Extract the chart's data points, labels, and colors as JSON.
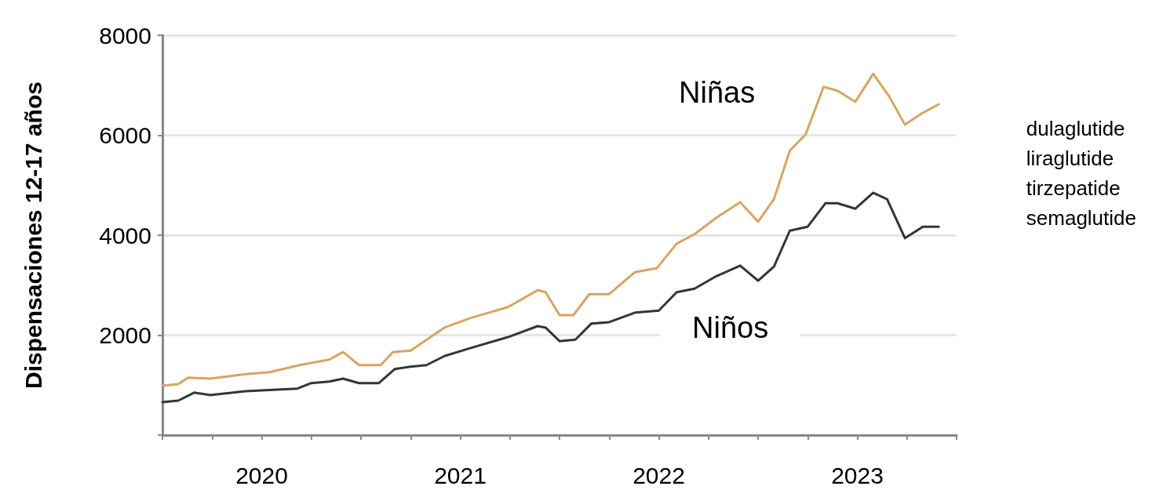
{
  "chart_data": {
    "type": "line",
    "ylabel": "Dispensaciones 12-17 años",
    "xlim": [
      2020,
      2024
    ],
    "xticks": [
      {
        "value": 2020,
        "label": null
      },
      {
        "value": 2020.25,
        "label": null
      },
      {
        "value": 2020.5,
        "label": "2020"
      },
      {
        "value": 2020.75,
        "label": null
      },
      {
        "value": 2021,
        "label": null
      },
      {
        "value": 2021.25,
        "label": null
      },
      {
        "value": 2021.5,
        "label": "2021"
      },
      {
        "value": 2021.75,
        "label": null
      },
      {
        "value": 2022,
        "label": null
      },
      {
        "value": 2022.25,
        "label": null
      },
      {
        "value": 2022.5,
        "label": "2022"
      },
      {
        "value": 2022.75,
        "label": null
      },
      {
        "value": 2023,
        "label": null
      },
      {
        "value": 2023.25,
        "label": null
      },
      {
        "value": 2023.5,
        "label": "2023"
      },
      {
        "value": 2023.75,
        "label": null
      },
      {
        "value": 2024,
        "label": null
      }
    ],
    "ylim": [
      0,
      8000
    ],
    "yticks": [
      {
        "value": 0,
        "label": null
      },
      2000,
      4000,
      6000,
      8000
    ],
    "grid": "y",
    "legend": false,
    "marker": "none",
    "line_style": "solid",
    "annotations": [
      "dulaglutide\nliraglutide\ntirzepatide\nsemaglutide"
    ],
    "series": [
      {
        "name": "Niñas",
        "color": "#d8a464",
        "x": [
          2020,
          2020.08,
          2020.13,
          2020.24,
          2020.42,
          2020.54,
          2020.69,
          2020.84,
          2020.91,
          2020.99,
          2021.1,
          2021.16,
          2021.25,
          2021.42,
          2021.55,
          2021.74,
          2021.89,
          2021.93,
          2022,
          2022.07,
          2022.15,
          2022.25,
          2022.38,
          2022.49,
          2022.59,
          2022.68,
          2022.79,
          2022.91,
          2023,
          2023.08,
          2023.16,
          2023.24,
          2023.33,
          2023.4,
          2023.49,
          2023.58,
          2023.66,
          2023.74,
          2023.83,
          2023.91
        ],
        "values": [
          990,
          1020,
          1150,
          1130,
          1220,
          1260,
          1400,
          1510,
          1660,
          1400,
          1400,
          1660,
          1690,
          2150,
          2340,
          2560,
          2900,
          2860,
          2400,
          2400,
          2820,
          2820,
          3260,
          3340,
          3830,
          4020,
          4350,
          4660,
          4270,
          4720,
          5690,
          6020,
          6970,
          6890,
          6670,
          7230,
          6780,
          6210,
          6450,
          6620
        ]
      },
      {
        "name": "Niños",
        "color": "#30363c",
        "x": [
          2020,
          2020.08,
          2020.16,
          2020.24,
          2020.42,
          2020.68,
          2020.75,
          2020.84,
          2020.91,
          2020.99,
          2021.09,
          2021.17,
          2021.25,
          2021.33,
          2021.42,
          2021.55,
          2021.74,
          2021.89,
          2021.93,
          2022,
          2022.08,
          2022.16,
          2022.25,
          2022.38,
          2022.5,
          2022.59,
          2022.68,
          2022.79,
          2022.91,
          2023,
          2023.08,
          2023.16,
          2023.25,
          2023.34,
          2023.4,
          2023.49,
          2023.58,
          2023.65,
          2023.74,
          2023.83,
          2023.91
        ],
        "values": [
          660,
          690,
          850,
          800,
          880,
          930,
          1040,
          1070,
          1130,
          1040,
          1040,
          1320,
          1370,
          1400,
          1580,
          1740,
          1960,
          2180,
          2150,
          1880,
          1910,
          2230,
          2260,
          2450,
          2490,
          2860,
          2930,
          3180,
          3390,
          3090,
          3370,
          4090,
          4170,
          4640,
          4640,
          4530,
          4850,
          4720,
          3940,
          4170,
          4170
        ]
      }
    ]
  }
}
